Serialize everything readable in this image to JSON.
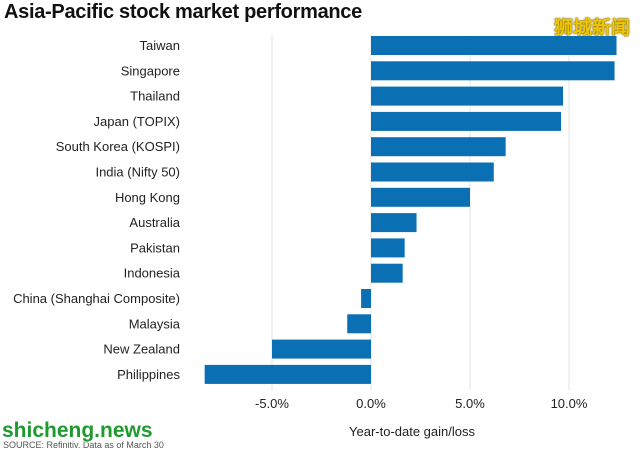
{
  "title": "Asia-Pacific stock market performance",
  "watermark_cn": "狮城新闻",
  "watermark_site": "shicheng.news",
  "source": "SOURCE: Refinitiv. Data as of March 30",
  "colors": {
    "bar": "#0a6fb3",
    "grid": "#e3e3e3",
    "text": "#222222"
  },
  "chart_data": {
    "type": "bar",
    "orientation": "horizontal",
    "categories": [
      "Taiwan",
      "Singapore",
      "Thailand",
      "Japan (TOPIX)",
      "South Korea (KOSPI)",
      "India (Nifty 50)",
      "Hong Kong",
      "Australia",
      "Pakistan",
      "Indonesia",
      "China (Shanghai Composite)",
      "Malaysia",
      "New Zealand",
      "Philippines"
    ],
    "values": [
      12.4,
      12.3,
      9.7,
      9.6,
      6.8,
      6.2,
      5.0,
      2.3,
      1.7,
      1.6,
      -0.5,
      -1.2,
      -5.0,
      -8.4
    ],
    "xlabel": "Year-to-date gain/loss",
    "ticks": [
      -5,
      0,
      5,
      10
    ],
    "tick_labels": [
      "-5.0%",
      "0.0%",
      "5.0%",
      "10.0%"
    ],
    "xlim": [
      -8.5,
      12.5
    ],
    "grid": true
  }
}
